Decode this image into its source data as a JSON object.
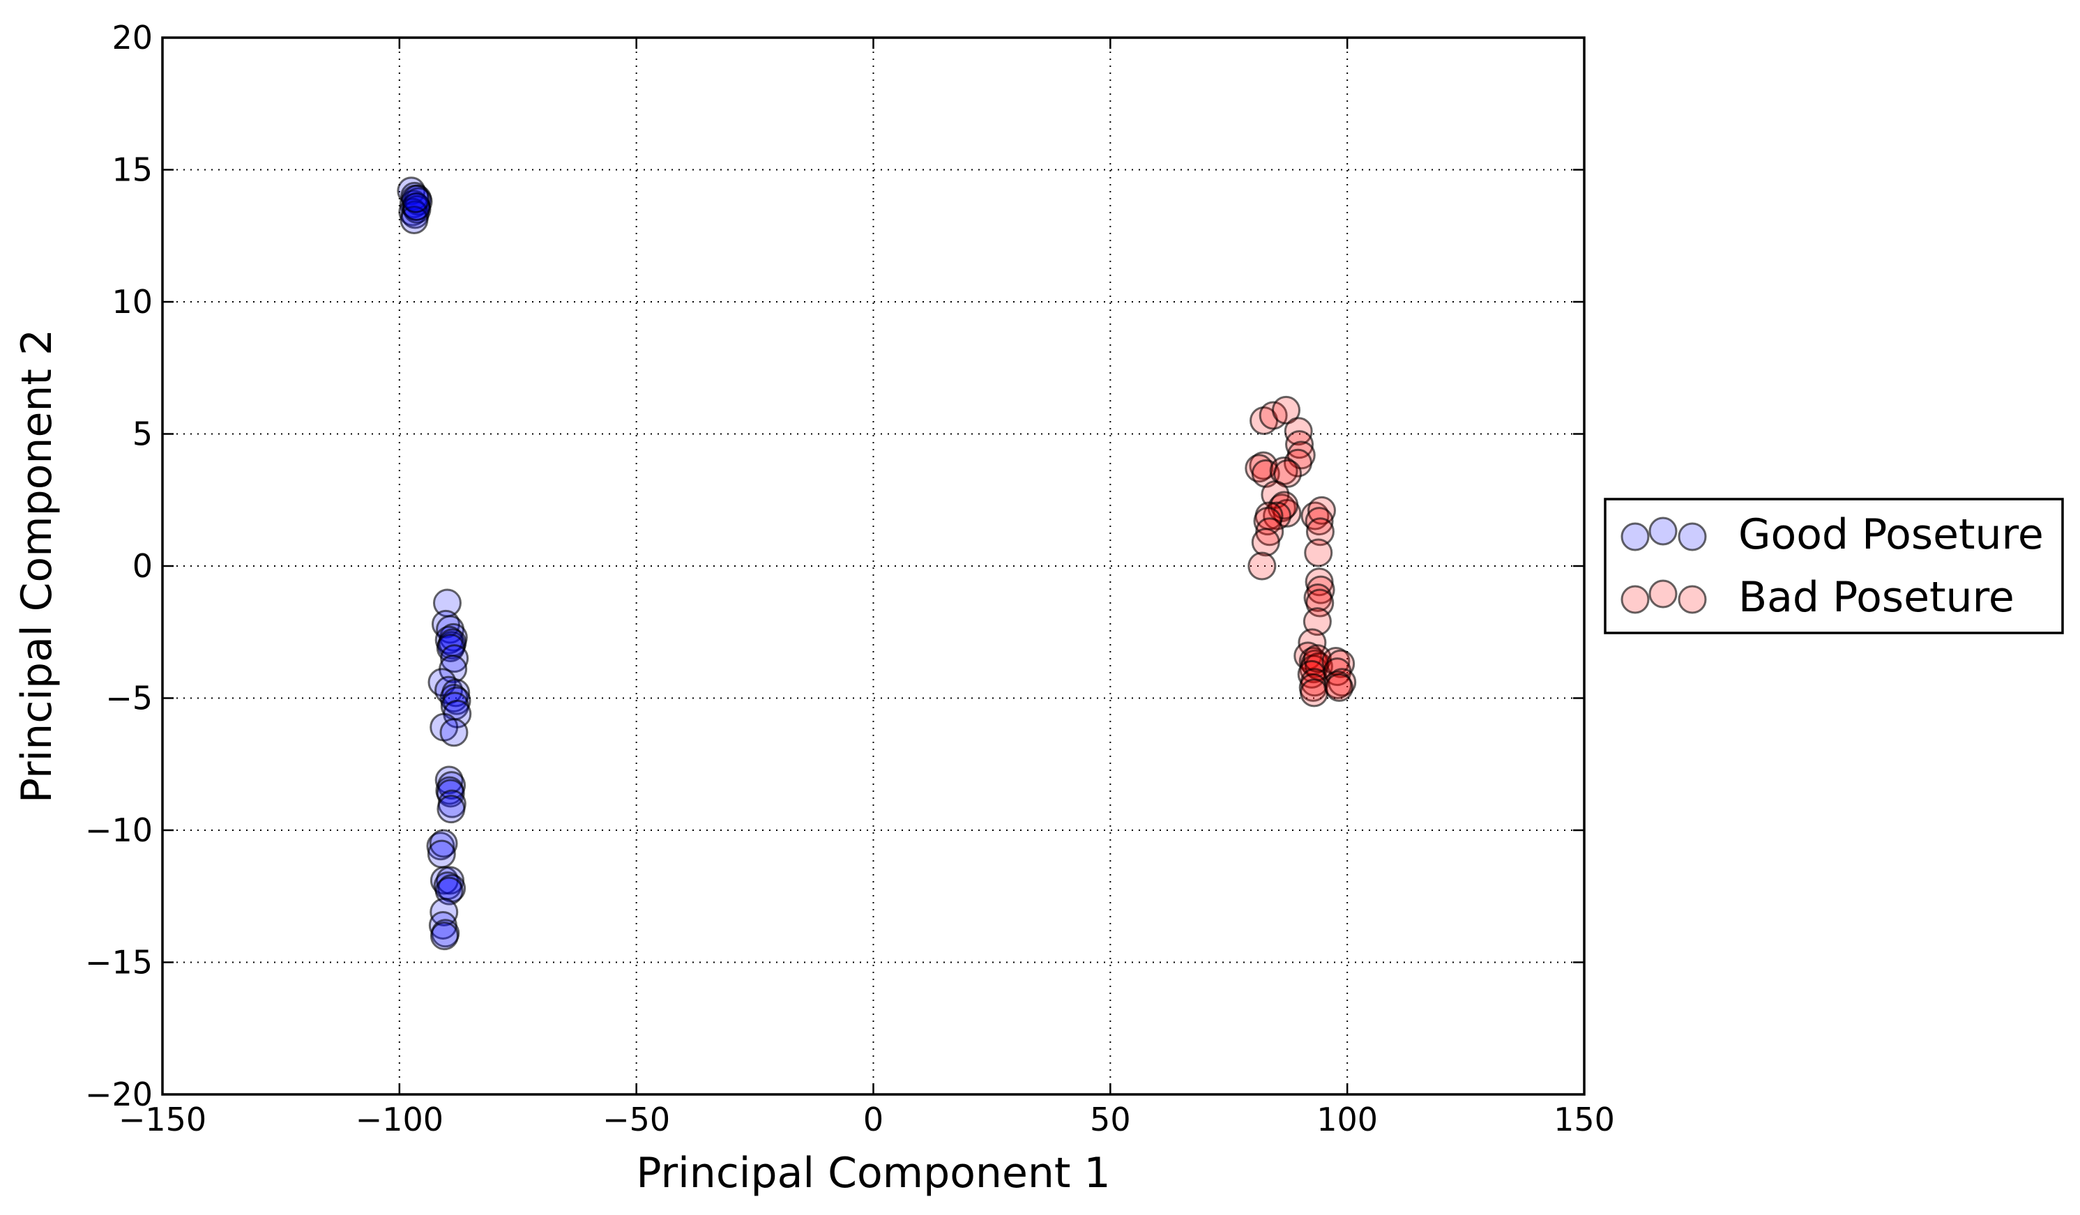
{
  "chart_data": {
    "type": "scatter",
    "title": "",
    "xlabel": "Principal Component 1",
    "ylabel": "Principal Component 2",
    "xlim": [
      -150,
      150
    ],
    "ylim": [
      -20,
      20
    ],
    "xticks": [
      -150,
      -100,
      -50,
      0,
      50,
      100,
      150
    ],
    "yticks": [
      -20,
      -15,
      -10,
      -5,
      0,
      5,
      10,
      15,
      20
    ],
    "xtick_labels": [
      "−150",
      "−100",
      "−50",
      "0",
      "50",
      "100",
      "150"
    ],
    "ytick_labels": [
      "−20",
      "−15",
      "−10",
      "−5",
      "0",
      "5",
      "10",
      "15",
      "20"
    ],
    "grid": true,
    "legend_position": "outside-right",
    "marker_alpha": 0.2,
    "series": [
      {
        "name": "Good Poseture",
        "color": "#0000ff",
        "points": [
          [
            -97.5,
            14.2
          ],
          [
            -96.8,
            14.0
          ],
          [
            -96.2,
            13.9
          ],
          [
            -97.0,
            13.7
          ],
          [
            -96.5,
            13.6
          ],
          [
            -96.0,
            13.8
          ],
          [
            -97.2,
            13.4
          ],
          [
            -96.7,
            13.3
          ],
          [
            -96.3,
            13.5
          ],
          [
            -96.9,
            13.1
          ],
          [
            -96.4,
            13.6
          ],
          [
            -96.6,
            13.9
          ],
          [
            -89.9,
            -1.4
          ],
          [
            -90.2,
            -2.2
          ],
          [
            -89.3,
            -2.4
          ],
          [
            -88.6,
            -2.7
          ],
          [
            -89.5,
            -2.8
          ],
          [
            -89.0,
            -3.0
          ],
          [
            -88.8,
            -2.9
          ],
          [
            -89.2,
            -3.1
          ],
          [
            -88.4,
            -3.5
          ],
          [
            -88.7,
            -3.9
          ],
          [
            -91.0,
            -4.4
          ],
          [
            -89.6,
            -4.7
          ],
          [
            -88.1,
            -4.8
          ],
          [
            -88.5,
            -5.0
          ],
          [
            -87.9,
            -5.1
          ],
          [
            -88.3,
            -5.3
          ],
          [
            -87.8,
            -5.6
          ],
          [
            -90.6,
            -6.1
          ],
          [
            -88.5,
            -6.3
          ],
          [
            -89.5,
            -8.1
          ],
          [
            -89.0,
            -8.3
          ],
          [
            -89.4,
            -8.5
          ],
          [
            -89.2,
            -8.6
          ],
          [
            -88.9,
            -9.0
          ],
          [
            -89.1,
            -9.2
          ],
          [
            -91.3,
            -10.6
          ],
          [
            -90.7,
            -10.5
          ],
          [
            -91.1,
            -10.9
          ],
          [
            -90.5,
            -11.9
          ],
          [
            -89.3,
            -11.9
          ],
          [
            -89.8,
            -12.1
          ],
          [
            -89.0,
            -12.2
          ],
          [
            -89.5,
            -12.3
          ],
          [
            -90.6,
            -13.1
          ],
          [
            -90.8,
            -13.6
          ],
          [
            -90.3,
            -13.9
          ],
          [
            -90.5,
            -14.0
          ]
        ]
      },
      {
        "name": "Bad Poseture",
        "color": "#ff0000",
        "points": [
          [
            82.3,
            3.8
          ],
          [
            81.4,
            3.7
          ],
          [
            82.8,
            3.5
          ],
          [
            82.4,
            5.5
          ],
          [
            84.4,
            5.7
          ],
          [
            87.1,
            5.9
          ],
          [
            89.7,
            5.1
          ],
          [
            89.9,
            4.6
          ],
          [
            90.3,
            4.2
          ],
          [
            89.6,
            3.9
          ],
          [
            86.6,
            3.6
          ],
          [
            87.4,
            3.5
          ],
          [
            84.8,
            2.7
          ],
          [
            86.2,
            2.2
          ],
          [
            87.3,
            2.0
          ],
          [
            86.7,
            2.3
          ],
          [
            85.2,
            1.9
          ],
          [
            83.5,
            1.9
          ],
          [
            83.2,
            1.7
          ],
          [
            83.6,
            1.3
          ],
          [
            82.8,
            0.9
          ],
          [
            82.0,
            0.0
          ],
          [
            93.2,
            1.9
          ],
          [
            94.6,
            2.1
          ],
          [
            94.1,
            1.7
          ],
          [
            94.3,
            1.3
          ],
          [
            93.9,
            0.5
          ],
          [
            94.1,
            -0.6
          ],
          [
            94.4,
            -0.9
          ],
          [
            93.8,
            -1.2
          ],
          [
            94.2,
            -1.4
          ],
          [
            93.7,
            -2.1
          ],
          [
            92.6,
            -2.9
          ],
          [
            91.7,
            -3.4
          ],
          [
            92.8,
            -3.6
          ],
          [
            93.2,
            -3.7
          ],
          [
            92.9,
            -3.9
          ],
          [
            94.0,
            -3.8
          ],
          [
            93.7,
            -3.5
          ],
          [
            92.5,
            -4.1
          ],
          [
            93.1,
            -4.4
          ],
          [
            92.8,
            -4.6
          ],
          [
            93.0,
            -4.8
          ],
          [
            97.6,
            -3.6
          ],
          [
            98.6,
            -3.7
          ],
          [
            97.9,
            -4.0
          ],
          [
            98.9,
            -4.4
          ],
          [
            98.0,
            -4.5
          ],
          [
            98.3,
            -4.6
          ]
        ]
      }
    ]
  }
}
